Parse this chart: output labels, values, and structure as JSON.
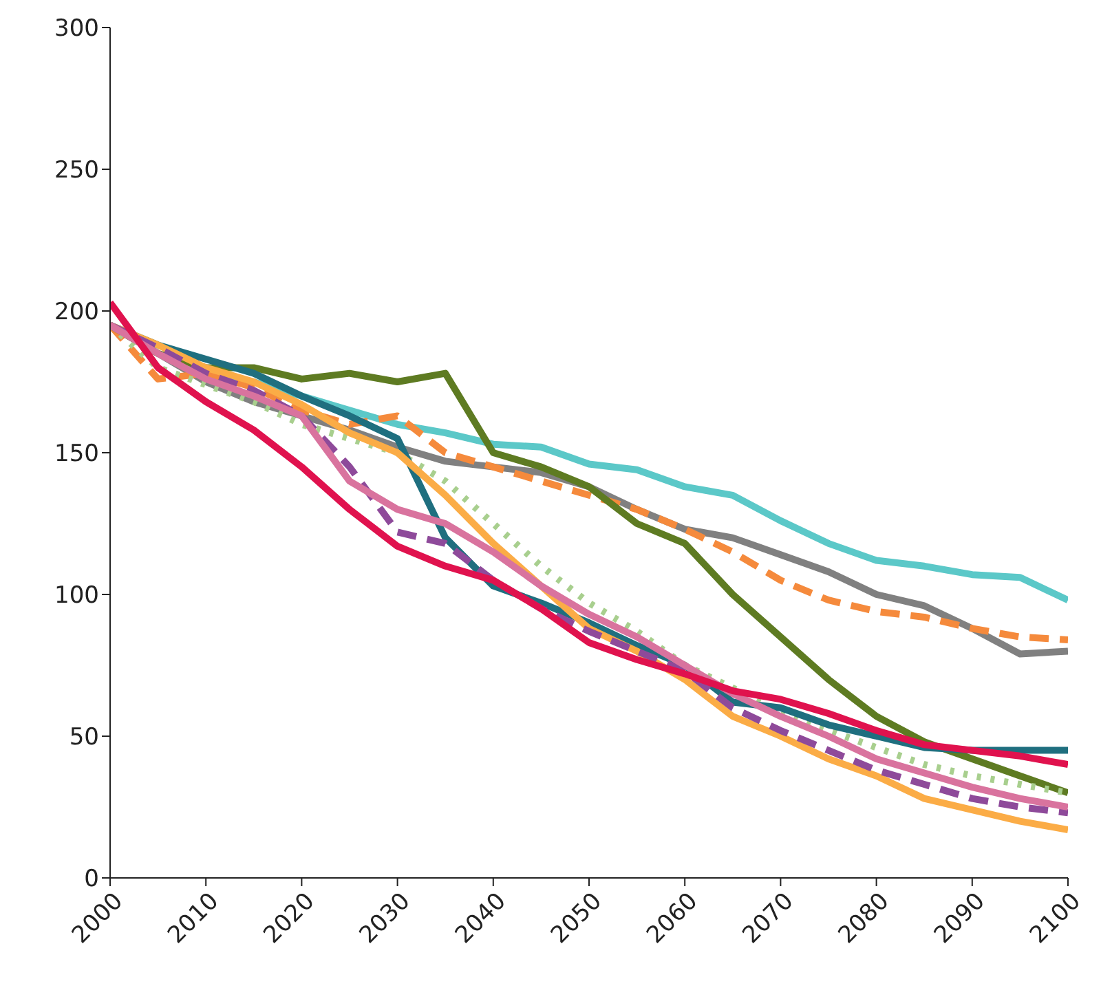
{
  "chart_data": {
    "type": "line",
    "x": [
      2000,
      2005,
      2010,
      2015,
      2020,
      2025,
      2030,
      2035,
      2040,
      2045,
      2050,
      2055,
      2060,
      2065,
      2070,
      2075,
      2080,
      2085,
      2090,
      2095,
      2100
    ],
    "xlim": [
      2000,
      2100
    ],
    "xticks": [
      2000,
      2010,
      2020,
      2030,
      2040,
      2050,
      2060,
      2070,
      2080,
      2090,
      2100
    ],
    "ylim": [
      0,
      300
    ],
    "yticks": [
      0,
      50,
      100,
      150,
      200,
      250,
      300
    ],
    "grid": false,
    "legend": false,
    "marker": "none",
    "series": [
      {
        "color": "#5bc8c8",
        "line_style": "solid",
        "values": [
          195,
          185,
          178,
          175,
          170,
          165,
          160,
          157,
          153,
          152,
          146,
          144,
          138,
          135,
          126,
          118,
          112,
          110,
          107,
          106,
          98
        ]
      },
      {
        "color": "#808080",
        "line_style": "solid",
        "values": [
          195,
          185,
          175,
          168,
          163,
          158,
          152,
          147,
          145,
          143,
          138,
          130,
          123,
          120,
          114,
          108,
          100,
          96,
          88,
          79,
          80
        ]
      },
      {
        "color": "#f58a3c",
        "line_style": "dashed",
        "values": [
          195,
          176,
          178,
          173,
          165,
          160,
          163,
          150,
          145,
          140,
          135,
          130,
          123,
          115,
          105,
          98,
          94,
          92,
          88,
          85,
          84
        ]
      },
      {
        "color": "#5e7b22",
        "line_style": "solid",
        "values": [
          195,
          185,
          180,
          180,
          176,
          178,
          175,
          178,
          150,
          145,
          138,
          125,
          118,
          100,
          85,
          70,
          57,
          48,
          42,
          36,
          30
        ]
      },
      {
        "color": "#a8cf8e",
        "line_style": "dotted",
        "values": [
          195,
          180,
          174,
          168,
          160,
          155,
          150,
          140,
          125,
          110,
          97,
          87,
          75,
          67,
          58,
          52,
          46,
          40,
          36,
          33,
          30
        ]
      },
      {
        "color": "#1f6f7f",
        "line_style": "solid",
        "values": [
          195,
          188,
          183,
          178,
          170,
          163,
          155,
          120,
          103,
          97,
          90,
          82,
          75,
          62,
          60,
          54,
          50,
          46,
          45,
          45,
          45
        ]
      },
      {
        "color": "#fbac46",
        "line_style": "solid",
        "values": [
          195,
          188,
          180,
          175,
          167,
          157,
          150,
          135,
          118,
          103,
          88,
          80,
          70,
          57,
          50,
          42,
          36,
          28,
          24,
          20,
          17
        ]
      },
      {
        "color": "#8e4a9a",
        "line_style": "dashed",
        "values": [
          195,
          187,
          178,
          172,
          163,
          145,
          122,
          118,
          105,
          95,
          87,
          80,
          73,
          60,
          52,
          45,
          38,
          33,
          28,
          25,
          23
        ]
      },
      {
        "color": "#d9739e",
        "line_style": "solid",
        "values": [
          195,
          185,
          176,
          170,
          163,
          140,
          130,
          125,
          115,
          103,
          93,
          85,
          75,
          65,
          57,
          50,
          42,
          37,
          32,
          28,
          25
        ]
      },
      {
        "color": "#e0124e",
        "line_style": "solid",
        "values": [
          203,
          180,
          168,
          158,
          145,
          130,
          117,
          110,
          105,
          95,
          83,
          77,
          72,
          66,
          63,
          58,
          52,
          47,
          45,
          43,
          40
        ]
      }
    ]
  }
}
